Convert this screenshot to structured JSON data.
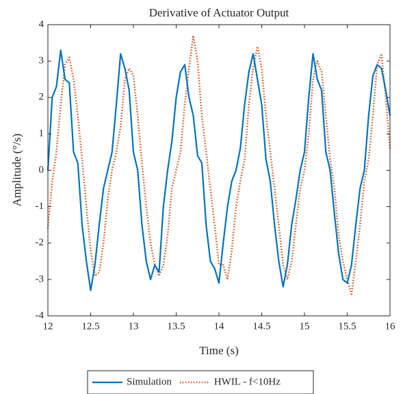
{
  "chart_data": {
    "type": "line",
    "title": "Derivative of Actuator Output",
    "xlabel": "Time (s)",
    "ylabel": "Amplitude (°/s)",
    "x": [
      12.0,
      12.05,
      12.1,
      12.15,
      12.2,
      12.25,
      12.3,
      12.35,
      12.4,
      12.45,
      12.5,
      12.55,
      12.6,
      12.65,
      12.7,
      12.75,
      12.8,
      12.85,
      12.9,
      12.95,
      13.0,
      13.05,
      13.1,
      13.15,
      13.2,
      13.25,
      13.3,
      13.35,
      13.4,
      13.45,
      13.5,
      13.55,
      13.6,
      13.65,
      13.7,
      13.75,
      13.8,
      13.85,
      13.9,
      13.95,
      14.0,
      14.05,
      14.1,
      14.15,
      14.2,
      14.25,
      14.3,
      14.35,
      14.4,
      14.45,
      14.5,
      14.55,
      14.6,
      14.65,
      14.7,
      14.75,
      14.8,
      14.85,
      14.9,
      14.95,
      15.0,
      15.05,
      15.1,
      15.15,
      15.2,
      15.25,
      15.3,
      15.35,
      15.4,
      15.45,
      15.5,
      15.55,
      15.6,
      15.65,
      15.7,
      15.75,
      15.8,
      15.85,
      15.9,
      15.95,
      16.0
    ],
    "series": [
      {
        "name": "Simulation",
        "color": "#0072bd",
        "dash": "solid",
        "values": [
          0,
          2.0,
          2.3,
          3.3,
          2.5,
          2.4,
          0.5,
          0.2,
          -1.5,
          -2.5,
          -3.3,
          -2.6,
          -1.5,
          -0.5,
          0,
          0.5,
          1.8,
          3.2,
          2.8,
          2.2,
          0.5,
          0,
          -1.5,
          -2.5,
          -3.0,
          -2.6,
          -2.8,
          -1.0,
          0,
          0.8,
          2.0,
          2.7,
          2.9,
          2.0,
          1.5,
          0.4,
          0.2,
          -1.5,
          -2.5,
          -2.7,
          -3.1,
          -2.0,
          -1.0,
          -0.3,
          0,
          0.6,
          1.8,
          2.7,
          3.2,
          2.5,
          1.8,
          0.3,
          -0.3,
          -1.5,
          -2.5,
          -3.2,
          -2.6,
          -1.5,
          -0.8,
          0,
          0.5,
          2.0,
          3.2,
          2.5,
          2.2,
          0.5,
          0,
          -1.2,
          -2.3,
          -3.0,
          -3.1,
          -2.6,
          -1.5,
          -0.5,
          0,
          1.5,
          2.6,
          2.9,
          2.8,
          2.2,
          1.5
        ]
      },
      {
        "name": "HWIL - f<10Hz",
        "color": "#d95319",
        "dash": "dotted",
        "values": [
          -1.6,
          -0.3,
          0.5,
          1.8,
          2.9,
          3.1,
          2.5,
          1.5,
          0.3,
          -1.0,
          -2.2,
          -2.9,
          -2.8,
          -2.0,
          -0.8,
          0,
          0.5,
          1.2,
          2.5,
          2.8,
          2.6,
          1.5,
          0.2,
          -1.0,
          -2.0,
          -2.6,
          -2.9,
          -2.6,
          -1.8,
          -0.5,
          0,
          0.5,
          1.8,
          2.8,
          3.7,
          3.0,
          1.5,
          0.5,
          -0.5,
          -1.5,
          -2.6,
          -2.6,
          -3.0,
          -2.2,
          -1.0,
          -0.3,
          0.3,
          1.8,
          2.8,
          3.4,
          2.8,
          1.5,
          0.5,
          -0.5,
          -1.5,
          -2.6,
          -3.0,
          -2.5,
          -1.5,
          -0.5,
          0,
          1.0,
          2.5,
          3.0,
          2.7,
          1.5,
          0.3,
          -0.5,
          -1.8,
          -2.5,
          -3.0,
          -3.4,
          -2.5,
          -1.5,
          -0.3,
          0.3,
          1.5,
          2.9,
          3.2,
          2.0,
          0.6
        ]
      }
    ],
    "xlim": [
      12,
      16
    ],
    "xticks": [
      12,
      12.5,
      13,
      13.5,
      14,
      14.5,
      15,
      15.5,
      16
    ],
    "ylim": [
      -4,
      4
    ],
    "yticks": [
      -4,
      -3,
      -2,
      -1,
      0,
      1,
      2,
      3,
      4
    ],
    "legend": "bottom"
  }
}
